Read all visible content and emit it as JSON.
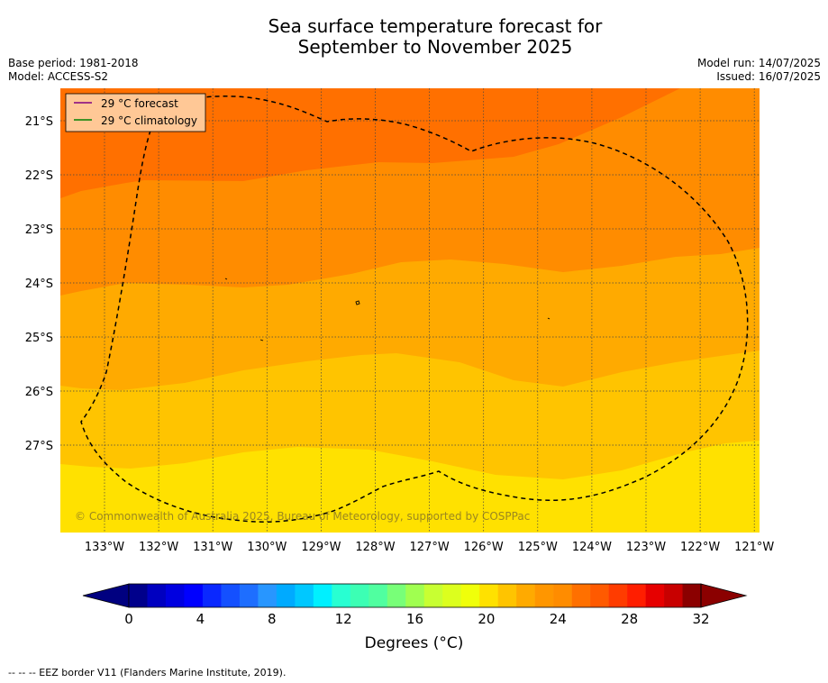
{
  "header": {
    "title_line1": "Sea surface temperature forecast for",
    "title_line2": "September to November 2025",
    "base_period": "Base period: 1981-2018",
    "model": "Model: ACCESS-S2",
    "model_run": "Model run: 14/07/2025",
    "issued": "Issued: 16/07/2025"
  },
  "map": {
    "lat_labels": [
      "21°S",
      "22°S",
      "23°S",
      "24°S",
      "25°S",
      "26°S",
      "27°S"
    ],
    "lon_labels": [
      "133°W",
      "132°W",
      "131°W",
      "130°W",
      "129°W",
      "128°W",
      "127°W",
      "126°W",
      "125°W",
      "124°W",
      "123°W",
      "122°W",
      "121°W"
    ],
    "legend": [
      {
        "label": "29 °C  forecast",
        "color": "#800080"
      },
      {
        "label": "29 °C  climatology",
        "color": "#008000"
      }
    ],
    "watermark": "© Commonwealth of Australia 2025, Bureau of Meteorology, supported by COSPPac",
    "band_colors": [
      "#ff7000",
      "#ff8c00",
      "#ffaa00",
      "#ffc400",
      "#ffe100"
    ]
  },
  "colorbar": {
    "tick_labels": [
      "0",
      "4",
      "8",
      "12",
      "16",
      "20",
      "24",
      "28",
      "32"
    ],
    "label": "Degrees (°C)",
    "colors": [
      "#00008b",
      "#0000c0",
      "#0000e0",
      "#0000ff",
      "#0a28ff",
      "#1450ff",
      "#1e6eff",
      "#2896ff",
      "#00aaff",
      "#00c8ff",
      "#00f0ff",
      "#28ffd2",
      "#3cffb4",
      "#50ffa0",
      "#78ff78",
      "#a0ff50",
      "#c8ff32",
      "#dcff1e",
      "#f0ff0a",
      "#ffe100",
      "#ffc400",
      "#ffaa00",
      "#ff9600",
      "#ff8c00",
      "#ff7000",
      "#ff5a00",
      "#ff3c00",
      "#ff1e00",
      "#e60000",
      "#c80000",
      "#8b0000"
    ],
    "under_color": "#000080",
    "over_color": "#8b0000"
  },
  "footer": {
    "note": "--  --  -- EEZ border V11 (Flanders Marine Institute, 2019)."
  }
}
